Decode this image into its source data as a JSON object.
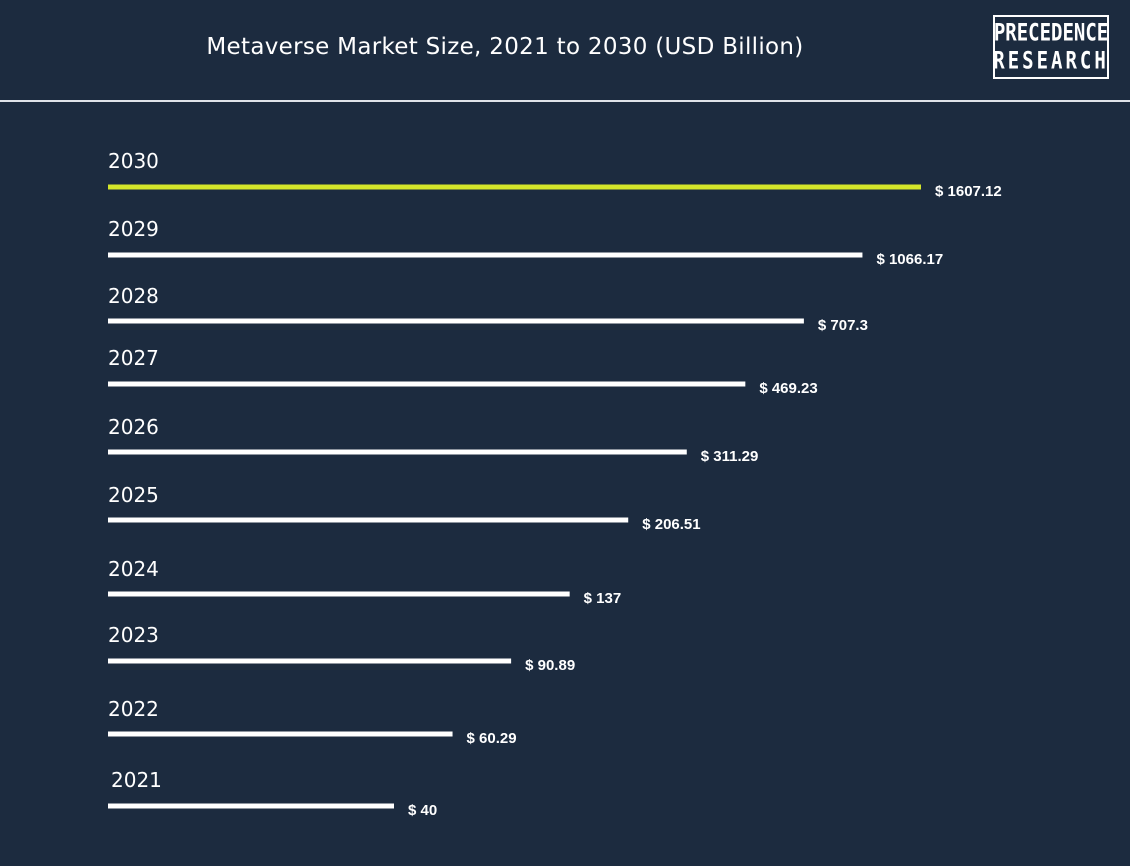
{
  "header": {
    "title": "Metaverse Market Size, 2021 to 2030 (USD Billion)",
    "logo_line1": "PRECEDENCE",
    "logo_line2": "RESEARCH"
  },
  "colors": {
    "background": "#1c2b3f",
    "bar_default": "#ffffff",
    "bar_highlight": "#d4e62a",
    "text": "#ffffff"
  },
  "chart_data": {
    "type": "bar",
    "orientation": "horizontal",
    "title": "Metaverse Market Size, 2021 to 2030 (USD Billion)",
    "categories": [
      "2030",
      "2029",
      "2028",
      "2027",
      "2026",
      "2025",
      "2024",
      "2023",
      "2022",
      "2021"
    ],
    "values": [
      1607.12,
      1066.17,
      707.3,
      469.23,
      311.29,
      206.51,
      137,
      90.89,
      60.29,
      40
    ],
    "value_labels": [
      "$ 1607.12",
      "$ 1066.17",
      "$ 707.3",
      "$ 469.23",
      "$ 311.29",
      "$ 206.51",
      "$ 137",
      "$ 90.89",
      "$ 60.29",
      "$ 40"
    ],
    "highlight_category": "2030",
    "grid": false,
    "legend": "none"
  }
}
